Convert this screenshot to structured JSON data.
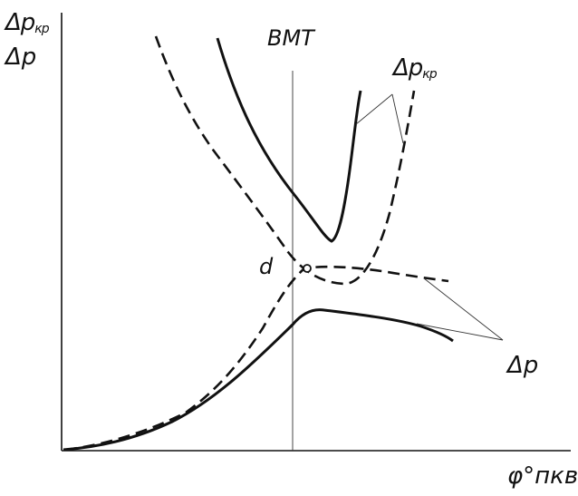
{
  "labels": {
    "y_axis_top_main": "Δp",
    "y_axis_top_sub": "кр",
    "y_axis_second": "Δp",
    "bmt": "ВМТ",
    "dpkr_main": "Δp",
    "dpkr_sub": "кр",
    "point_d": "d",
    "dp": "Δp",
    "x_axis": "φ°пкв"
  },
  "colors": {
    "ink": "#111111",
    "background": "#ffffff"
  }
}
